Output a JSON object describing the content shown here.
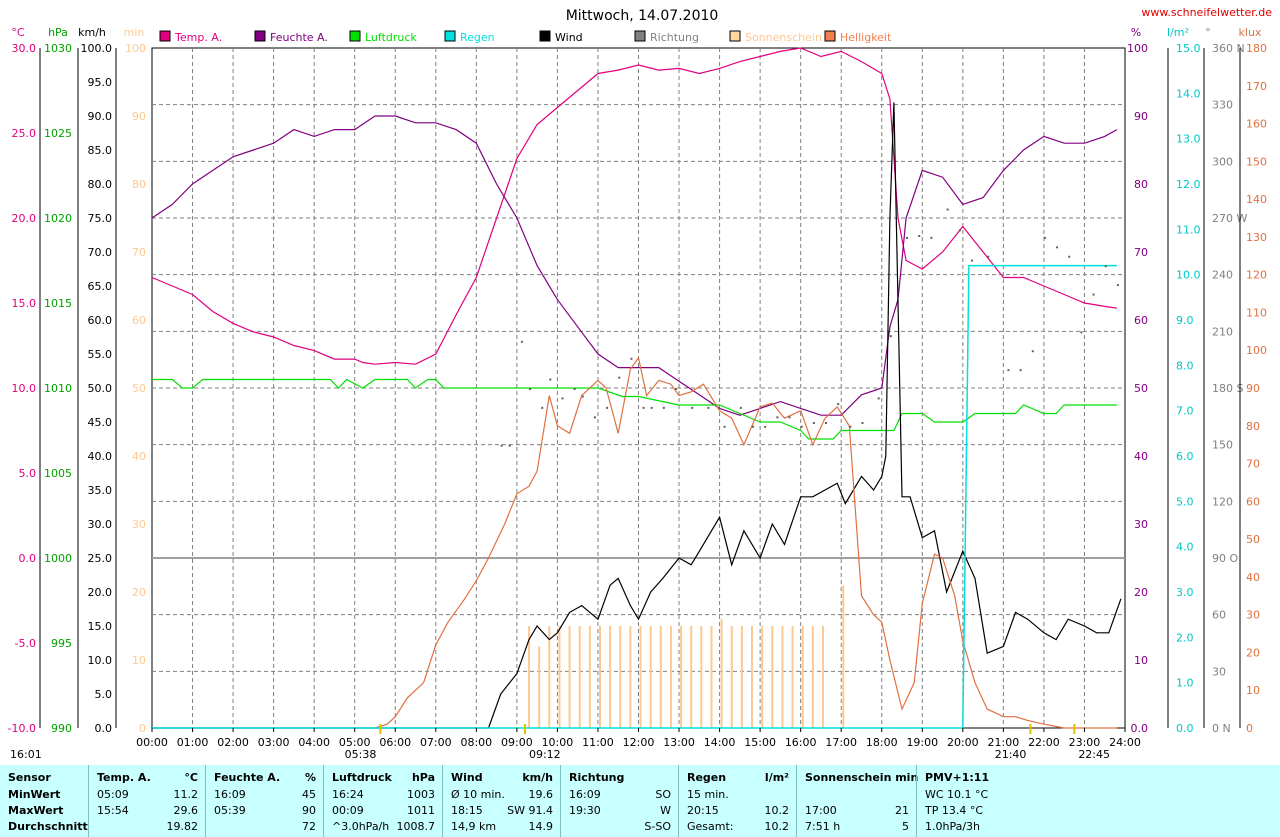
{
  "chart_data": {
    "type": "line",
    "title": "Mittwoch, 14.07.2010",
    "website": "www.schneifelwetter.de",
    "x_ticks": [
      "00:00",
      "01:00",
      "02:00",
      "03:00",
      "04:00",
      "05:00",
      "06:00",
      "07:00",
      "08:00",
      "09:00",
      "10:00",
      "11:00",
      "12:00",
      "13:00",
      "14:00",
      "15:00",
      "16:00",
      "17:00",
      "18:00",
      "19:00",
      "20:00",
      "21:00",
      "22:00",
      "23:00",
      "24:00"
    ],
    "time_markers": [
      {
        "label": "05:38",
        "time": 5.633
      },
      {
        "label": "09:12",
        "time": 9.2
      },
      {
        "label": "21:40",
        "time": 21.667
      },
      {
        "label": "22:45",
        "time": 22.75
      }
    ],
    "corner_label": "16:01",
    "axes": {
      "temp": {
        "unit": "°C",
        "min": -10,
        "max": 30,
        "ticks": [
          "30.0",
          "25.0",
          "20.0",
          "15.0",
          "10.0",
          "5.0",
          "0.0",
          "-5.0",
          "-10.0"
        ],
        "color": "#e0007f"
      },
      "pressure": {
        "unit": "hPa",
        "min": 990,
        "max": 1030,
        "ticks": [
          "1030",
          "1025",
          "1020",
          "1015",
          "1010",
          "1005",
          "1000",
          "995",
          "990"
        ],
        "color": "#00a000"
      },
      "wind": {
        "unit": "km/h",
        "min": 0,
        "max": 100,
        "ticks": [
          "100.0",
          "95.0",
          "90.0",
          "85.0",
          "80.0",
          "75.0",
          "70.0",
          "65.0",
          "60.0",
          "55.0",
          "50.0",
          "45.0",
          "40.0",
          "35.0",
          "30.0",
          "25.0",
          "20.0",
          "15.0",
          "10.0",
          "5.0",
          "0.0"
        ],
        "color": "#000000"
      },
      "sun": {
        "unit": "min",
        "min": 0,
        "max": 100,
        "ticks": [
          "100",
          "90",
          "80",
          "70",
          "60",
          "50",
          "40",
          "30",
          "20",
          "10",
          "0"
        ],
        "color": "#ffd8a0"
      },
      "humidity": {
        "unit": "%",
        "min": 0,
        "max": 100,
        "ticks": [
          "100",
          "90",
          "80",
          "70",
          "60",
          "50",
          "40",
          "30",
          "20",
          "10",
          "0.0"
        ],
        "color": "#800080"
      },
      "rain": {
        "unit": "l/m²",
        "min": 0,
        "max": 15,
        "ticks": [
          "15.0",
          "14.0",
          "13.0",
          "12.0",
          "11.0",
          "10.0",
          "9.0",
          "8.0",
          "7.0",
          "6.0",
          "5.0",
          "4.0",
          "3.0",
          "2.0",
          "1.0",
          "0.0"
        ],
        "color": "#00c8c8"
      },
      "direction": {
        "unit": "°",
        "ticks": [
          "360 N",
          "330",
          "300",
          "270 W",
          "240",
          "210",
          "180 S",
          "150",
          "120",
          "90 O",
          "60",
          "30",
          "0 N"
        ],
        "color": "#808080"
      },
      "brightness": {
        "unit": "klux",
        "min": 0,
        "max": 180,
        "ticks": [
          "180",
          "170",
          "160",
          "150",
          "140",
          "130",
          "120",
          "110",
          "100",
          "90",
          "80",
          "70",
          "60",
          "50",
          "40",
          "30",
          "20",
          "10",
          "0"
        ],
        "color": "#e07040"
      }
    },
    "legend": [
      {
        "name": "Temp. A.",
        "color": "#e0007f"
      },
      {
        "name": "Feuchte A.",
        "color": "#800080"
      },
      {
        "name": "Luftdruck",
        "color": "#00e000"
      },
      {
        "name": "Regen",
        "color": "#00e0e0"
      },
      {
        "name": "Wind",
        "color": "#000000"
      },
      {
        "name": "Richtung",
        "color": "#808080"
      },
      {
        "name": "Sonnenschein",
        "color": "#ffd8a0"
      },
      {
        "name": "Helligkeit",
        "color": "#f08050"
      }
    ],
    "series": [
      {
        "name": "Temp. A.",
        "axis": "temp",
        "x": [
          0,
          0.5,
          1,
          1.5,
          2,
          2.5,
          3,
          3.5,
          4,
          4.5,
          5,
          5.2,
          5.5,
          6,
          6.5,
          7,
          7.5,
          8,
          8.5,
          9,
          9.5,
          10,
          10.5,
          11,
          11.5,
          12,
          12.5,
          13,
          13.5,
          14,
          14.5,
          15,
          15.5,
          16,
          16.5,
          17,
          17.5,
          18,
          18.2,
          18.4,
          18.6,
          19,
          19.5,
          20,
          20.5,
          21,
          21.5,
          22,
          22.5,
          23,
          23.5,
          23.8
        ],
        "y": [
          16.5,
          16,
          15.5,
          14.5,
          13.8,
          13.3,
          13,
          12.5,
          12.2,
          11.7,
          11.7,
          11.5,
          11.4,
          11.5,
          11.4,
          12,
          14.3,
          16.5,
          20,
          23.5,
          25.5,
          26.5,
          27.5,
          28.5,
          28.7,
          29,
          28.7,
          28.8,
          28.5,
          28.8,
          29.2,
          29.5,
          29.8,
          30,
          29.5,
          29.8,
          29.2,
          28.5,
          27,
          20,
          17.5,
          17,
          18,
          19.5,
          18,
          16.5,
          16.5,
          16,
          15.5,
          15,
          14.8,
          14.7
        ]
      },
      {
        "name": "Feuchte A.",
        "axis": "humidity",
        "x": [
          0,
          0.5,
          1,
          1.5,
          2,
          2.5,
          3,
          3.5,
          4,
          4.5,
          5,
          5.5,
          6,
          6.5,
          7,
          7.5,
          8,
          8.5,
          9,
          9.5,
          10,
          10.5,
          11,
          11.5,
          12,
          12.5,
          13,
          13.5,
          14,
          14.5,
          15,
          15.5,
          16,
          16.5,
          17,
          17.5,
          18,
          18.2,
          18.4,
          18.6,
          19,
          19.5,
          20,
          20.5,
          21,
          21.5,
          22,
          22.5,
          23,
          23.5,
          23.8
        ],
        "y": [
          75,
          77,
          80,
          82,
          84,
          85,
          86,
          88,
          87,
          88,
          88,
          90,
          90,
          89,
          89,
          88,
          86,
          80,
          75,
          68,
          63,
          59,
          55,
          53,
          53,
          53,
          51,
          49,
          47,
          46,
          47,
          48,
          47,
          46,
          46,
          49,
          50,
          59,
          63,
          75,
          82,
          81,
          77,
          78,
          82,
          85,
          87,
          86,
          86,
          87,
          88
        ]
      },
      {
        "name": "Luftdruck",
        "axis": "pressure",
        "x": [
          0,
          0.5,
          0.75,
          1,
          1.25,
          2,
          3,
          4,
          4.4,
          4.6,
          4.8,
          5.2,
          5.5,
          6,
          6.3,
          6.5,
          6.8,
          7,
          7.2,
          7.5,
          8,
          9,
          10,
          11,
          11.6,
          12,
          13,
          14,
          14.5,
          15,
          15.5,
          16,
          16.2,
          16.5,
          16.8,
          17,
          17.5,
          18,
          18.3,
          18.5,
          19,
          19.3,
          19.5,
          20,
          20.3,
          20.8,
          21,
          21.3,
          21.5,
          22,
          22.3,
          22.5,
          23,
          23.5,
          23.8
        ],
        "y": [
          1010.5,
          1010.5,
          1010,
          1010,
          1010.5,
          1010.5,
          1010.5,
          1010.5,
          1010.5,
          1010,
          1010.5,
          1010,
          1010.5,
          1010.5,
          1010.5,
          1010,
          1010.5,
          1010.5,
          1010,
          1010,
          1010,
          1010,
          1010,
          1010,
          1009.5,
          1009.5,
          1009,
          1009,
          1008.5,
          1008,
          1008,
          1007.5,
          1007,
          1007,
          1007,
          1007.5,
          1007.5,
          1007.5,
          1007.5,
          1008.5,
          1008.5,
          1008,
          1008,
          1008,
          1008.5,
          1008.5,
          1008.5,
          1008.5,
          1009,
          1008.5,
          1008.5,
          1009,
          1009,
          1009,
          1009
        ]
      },
      {
        "name": "Wind",
        "axis": "wind",
        "x": [
          0,
          8.3,
          8.6,
          9,
          9.3,
          9.5,
          9.8,
          10,
          10.3,
          10.6,
          11,
          11.3,
          11.5,
          11.8,
          12,
          12.3,
          12.6,
          13,
          13.3,
          13.6,
          14,
          14.3,
          14.6,
          15,
          15.3,
          15.6,
          16,
          16.3,
          16.6,
          16.9,
          17.1,
          17.5,
          17.8,
          18,
          18.1,
          18.2,
          18.3,
          18.5,
          18.7,
          19,
          19.3,
          19.6,
          20,
          20.3,
          20.6,
          21,
          21.3,
          21.6,
          22,
          22.3,
          22.6,
          23,
          23.3,
          23.6,
          23.9
        ],
        "y": [
          0,
          0,
          5,
          8,
          13,
          15,
          13,
          14,
          17,
          18,
          16,
          21,
          22,
          18,
          16,
          20,
          22,
          25,
          24,
          27,
          31,
          24,
          29,
          25,
          30,
          27,
          34,
          34,
          35,
          36,
          33,
          37,
          35,
          37,
          40,
          75,
          92,
          34,
          34,
          28,
          29,
          20,
          26,
          22,
          11,
          12,
          17,
          16,
          14,
          13,
          16,
          15,
          14,
          14,
          19
        ]
      },
      {
        "name": "Helligkeit",
        "axis": "brightness",
        "x": [
          5.5,
          5.8,
          6,
          6.3,
          6.7,
          7,
          7.3,
          7.7,
          8,
          8.3,
          8.7,
          9,
          9.3,
          9.5,
          9.8,
          10,
          10.3,
          10.6,
          11,
          11.2,
          11.5,
          11.8,
          12,
          12.2,
          12.5,
          12.8,
          13,
          13.3,
          13.6,
          14,
          14.3,
          14.6,
          15,
          15.3,
          15.6,
          16,
          16.3,
          16.6,
          16.9,
          17.2,
          17.5,
          17.8,
          18,
          18.2,
          18.5,
          18.8,
          19,
          19.3,
          19.5,
          19.8,
          20,
          20.3,
          20.6,
          21,
          21.3,
          21.6,
          22,
          22.5,
          23,
          23.8
        ],
        "y": [
          0,
          1,
          3,
          8,
          12,
          22,
          28,
          34,
          39,
          45,
          54,
          62,
          64,
          68,
          88,
          80,
          78,
          88,
          92,
          90,
          78,
          95,
          98,
          88,
          92,
          91,
          88,
          89,
          91,
          84,
          82,
          75,
          85,
          86,
          82,
          84,
          75,
          82,
          85,
          80,
          35,
          30,
          28,
          18,
          5,
          12,
          33,
          46,
          45,
          35,
          23,
          12,
          5,
          3,
          3,
          2,
          1,
          0,
          0,
          0
        ]
      }
    ],
    "rain_series": {
      "name": "Regen",
      "axis": "rain",
      "x": [
        0,
        20.0,
        20.15,
        20.2,
        23.8
      ],
      "y": [
        0,
        0,
        10.2,
        10.2,
        10.2
      ]
    },
    "sunshine_bars": {
      "name": "Sonnenschein",
      "axis": "sun",
      "start": 9.3,
      "end": 16.7,
      "step": 0.25,
      "values": [
        15,
        12,
        15,
        15,
        15,
        15,
        15,
        15,
        15,
        15,
        15,
        15,
        15,
        15,
        15,
        15,
        15,
        15,
        15,
        16,
        15,
        15,
        15,
        15,
        15,
        15,
        15,
        15,
        15,
        15
      ],
      "extra": [
        {
          "x": 17.05,
          "y": 21
        }
      ]
    },
    "direction_points": {
      "name": "Richtung",
      "axis": "direction",
      "x": [
        8.6,
        8.8,
        9.1,
        9.3,
        9.6,
        9.8,
        10.1,
        10.4,
        10.6,
        10.9,
        11.2,
        11.5,
        11.8,
        12.1,
        12.3,
        12.6,
        12.9,
        13.3,
        13.7,
        14.1,
        14.5,
        14.8,
        15.1,
        15.4,
        15.7,
        16.0,
        16.3,
        16.6,
        16.9,
        17.2,
        17.5,
        17.9,
        18.2,
        18.6,
        18.9,
        19.2,
        19.6,
        19.9,
        20.2,
        20.6,
        21.1,
        21.4,
        21.7,
        22.0,
        22.3,
        22.6,
        22.9,
        23.2,
        23.5,
        23.8
      ],
      "y": [
        150,
        150,
        205,
        180,
        170,
        185,
        175,
        180,
        176,
        165,
        170,
        186,
        196,
        170,
        170,
        170,
        180,
        170,
        170,
        160,
        170,
        160,
        160,
        165,
        165,
        160,
        162,
        162,
        172,
        160,
        162,
        175,
        208,
        260,
        261,
        260,
        275,
        264,
        248,
        250,
        190,
        190,
        200,
        260,
        255,
        250,
        210,
        230,
        245,
        235
      ]
    }
  },
  "panel": {
    "columns": [
      {
        "title": "Sensor",
        "rows": [
          "MinWert",
          "MaxWert",
          "Durchschnitt"
        ]
      },
      {
        "title": "Temp. A.",
        "unit": "°C",
        "rows": [
          [
            "05:09",
            "11.2"
          ],
          [
            "15:54",
            "29.6"
          ],
          [
            "",
            "19.82"
          ]
        ]
      },
      {
        "title": "Feuchte A.",
        "unit": "%",
        "rows": [
          [
            "16:09",
            "45"
          ],
          [
            "05:39",
            "90"
          ],
          [
            "",
            "72"
          ]
        ]
      },
      {
        "title": "Luftdruck",
        "unit": "hPa",
        "rows": [
          [
            "16:24",
            "1003"
          ],
          [
            "00:09",
            "1011"
          ],
          [
            "^3.0hPa/h",
            "1008.7"
          ]
        ]
      },
      {
        "title": "Wind",
        "unit": "km/h",
        "rows": [
          [
            "Ø 10 min.",
            "19.6"
          ],
          [
            "18:15",
            "SW 91.4"
          ],
          [
            "14,9 km",
            "14.9"
          ]
        ]
      },
      {
        "title": "Richtung",
        "unit": "",
        "rows": [
          [
            "16:09",
            "SO"
          ],
          [
            "19:30",
            "W"
          ],
          [
            "",
            "S-SO"
          ]
        ]
      },
      {
        "title": "Regen",
        "unit": "l/m²",
        "rows": [
          [
            "15 min.",
            ""
          ],
          [
            "20:15",
            "10.2"
          ],
          [
            "Gesamt:",
            "10.2"
          ]
        ]
      },
      {
        "title": "Sonnenschein min",
        "unit": "",
        "rows": [
          [
            "",
            ""
          ],
          [
            "17:00",
            "21"
          ],
          [
            "7:51 h",
            "5"
          ]
        ]
      },
      {
        "title": "PMV+1:11",
        "unit": "",
        "rows": [
          [
            "WC 10.1 °C",
            ""
          ],
          [
            "TP 13.4 °C",
            ""
          ],
          [
            "1.0hPa/3h",
            ""
          ]
        ]
      }
    ]
  }
}
